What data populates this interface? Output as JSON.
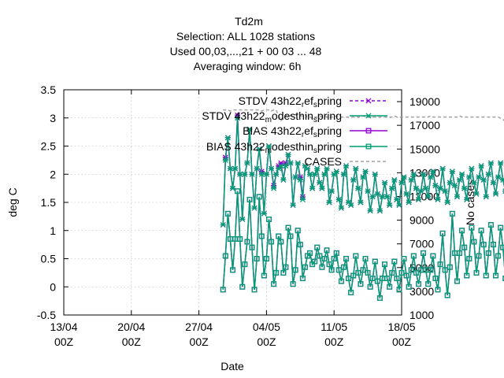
{
  "chart_data": {
    "type": "line",
    "title_lines": [
      "Td2m",
      "Selection: ALL   1028 stations",
      "Used  00,03,...,21  + 00 03 ... 48",
      "Averaging window:  6h"
    ],
    "xlabel": "Date",
    "ylabel": "deg C",
    "y2label": "No cases",
    "x_ticks": [
      "13/04 00Z",
      "20/04 00Z",
      "27/04 00Z",
      "04/05 00Z",
      "11/05 00Z",
      "18/05 00Z"
    ],
    "xlim": [
      "13/04 00Z",
      "18/05 00Z"
    ],
    "ylim": [
      -0.5,
      3.5
    ],
    "y_ticks": [
      "-0.5",
      "0",
      "0.5",
      "1",
      "1.5",
      "2",
      "2.5",
      "3",
      "3.5"
    ],
    "y2lim": [
      1000,
      20000
    ],
    "y2_ticks": [
      "1000",
      "3000",
      "5000",
      "7000",
      "9000",
      "11000",
      "13000",
      "15000",
      "17000",
      "19000"
    ],
    "grid": true,
    "legend_position": "top-right",
    "legend": [
      {
        "parts": [
          [
            "STDV 43h22",
            ""
          ],
          [
            "r",
            "sub"
          ],
          [
            "ef",
            ""
          ],
          [
            "s",
            "sub"
          ],
          [
            "pring",
            ""
          ]
        ],
        "color": "#9400d3",
        "marker": "x",
        "dash": true
      },
      {
        "parts": [
          [
            "STDV 43h22",
            ""
          ],
          [
            "m",
            "sub"
          ],
          [
            "odesthin",
            ""
          ],
          [
            "s",
            "sub"
          ],
          [
            "pring",
            ""
          ]
        ],
        "color": "#009e73",
        "marker": "x",
        "dash": false
      },
      {
        "parts": [
          [
            "BIAS 43h22",
            ""
          ],
          [
            "r",
            "sub"
          ],
          [
            "ef",
            ""
          ],
          [
            "s",
            "sub"
          ],
          [
            "pring",
            ""
          ]
        ],
        "color": "#9400d3",
        "marker": "square",
        "dash": false
      },
      {
        "parts": [
          [
            "BIAS 43h22",
            ""
          ],
          [
            "m",
            "sub"
          ],
          [
            "odesthin",
            ""
          ],
          [
            "s",
            "sub"
          ],
          [
            "pring",
            ""
          ]
        ],
        "color": "#009e73",
        "marker": "square",
        "dash": false
      },
      {
        "parts": [
          [
            "CASES",
            ""
          ]
        ],
        "color": "#a0a0a0",
        "marker": "none",
        "dash": true
      }
    ],
    "x_start_day": 16.5,
    "step_hours": 6,
    "series": [
      {
        "name": "STDV 43h22 ref spring",
        "axis": "y1",
        "color": "#9400d3",
        "marker": "x",
        "values": [
          1.1,
          2.3,
          2.65,
          2.1,
          1.75,
          2.1,
          3.05,
          2.0,
          1.2,
          2.0,
          2.2,
          2.8,
          2.0,
          1.4,
          2.1,
          2.45,
          2.05,
          1.3,
          2.0,
          2.5,
          2.1,
          1.8,
          2.0,
          2.15,
          2.2,
          1.9,
          2.2,
          2.35,
          2.2,
          1.45,
          1.95,
          2.2,
          1.95,
          1.6,
          2.15,
          2.1,
          2.0,
          1.75,
          2.0,
          2.1,
          1.85,
          1.75,
          2.0,
          2.1,
          1.5,
          1.7,
          2.0,
          2.05,
          1.55,
          1.4,
          2.0,
          2.15,
          1.5,
          1.45,
          1.9,
          2.1,
          1.75,
          1.5,
          1.95,
          2.05,
          1.7,
          1.35,
          1.6,
          2.0,
          1.65,
          1.35,
          1.6,
          1.85,
          1.6,
          1.45,
          1.75,
          1.9,
          1.55,
          1.45,
          1.85,
          1.95,
          1.65,
          1.5,
          1.9,
          2.0,
          1.75,
          1.55,
          1.7,
          2.0,
          1.75,
          1.6,
          1.95,
          2.05,
          1.8,
          1.55,
          1.75,
          2.1,
          1.7,
          1.5,
          1.85,
          2.05,
          1.8,
          1.6,
          1.9,
          2.0,
          1.75,
          1.55,
          1.95,
          2.1,
          1.85,
          1.65,
          1.95,
          2.15,
          1.9,
          1.6,
          2.0,
          2.2,
          1.85,
          1.65,
          1.95,
          2.2,
          1.9,
          1.7,
          1.95,
          2.2,
          1.8,
          1.75,
          2.05,
          2.25,
          1.9,
          1.75,
          2.0,
          2.35,
          1.95,
          1.7,
          2.05,
          2.4,
          1.95,
          1.7,
          2.1,
          2.45,
          1.8,
          1.75,
          2.1,
          2.55,
          1.85,
          1.7,
          2.0,
          2.5,
          1.75
        ],
        "note": ""
      },
      {
        "name": "STDV 43h22 modesthin spring",
        "axis": "y1",
        "color": "#009e73",
        "marker": "x",
        "values": [
          1.1,
          2.25,
          2.65,
          2.1,
          1.75,
          2.1,
          3.0,
          2.0,
          1.2,
          2.0,
          2.2,
          2.8,
          2.0,
          1.4,
          2.1,
          2.45,
          2.0,
          1.3,
          2.0,
          2.5,
          2.1,
          1.75,
          2.0,
          2.1,
          2.15,
          1.9,
          2.15,
          2.35,
          2.2,
          1.45,
          1.95,
          2.2,
          1.9,
          1.55,
          2.15,
          2.1,
          2.0,
          1.75,
          2.0,
          2.1,
          1.85,
          1.75,
          2.0,
          2.1,
          1.5,
          1.7,
          2.0,
          2.05,
          1.55,
          1.4,
          2.0,
          2.15,
          1.5,
          1.45,
          1.9,
          2.1,
          1.75,
          1.5,
          1.95,
          2.05,
          1.7,
          1.35,
          1.6,
          2.0,
          1.65,
          1.35,
          1.6,
          1.85,
          1.6,
          1.45,
          1.75,
          1.9,
          1.55,
          1.45,
          1.85,
          1.95,
          1.65,
          1.5,
          1.9,
          2.0,
          1.75,
          1.55,
          1.7,
          2.0,
          1.75,
          1.6,
          1.95,
          2.05,
          1.8,
          1.55,
          1.75,
          2.1,
          1.7,
          1.5,
          1.85,
          2.05,
          1.8,
          1.6,
          1.9,
          2.0,
          1.75,
          1.55,
          1.95,
          2.1,
          1.85,
          1.65,
          1.95,
          2.15,
          1.9,
          1.6,
          2.0,
          2.2,
          1.85,
          1.65,
          1.95,
          2.2,
          1.9,
          1.7,
          1.95,
          2.2,
          1.8,
          1.75,
          2.05,
          2.25,
          1.9,
          1.75,
          2.0,
          2.35,
          1.95,
          1.7,
          2.05,
          2.4,
          1.95,
          1.7,
          2.1,
          2.45,
          1.8,
          1.75,
          2.1,
          2.55,
          1.85,
          1.7,
          2.0,
          2.5,
          1.75
        ],
        "note": ""
      },
      {
        "name": "BIAS 43h22 ref spring",
        "axis": "y1",
        "color": "#9400d3",
        "marker": "square",
        "values": [
          -0.05,
          0.55,
          1.3,
          0.85,
          0.3,
          0.85,
          1.7,
          0.85,
          0.0,
          0.4,
          0.8,
          1.55,
          0.7,
          -0.05,
          0.5,
          1.6,
          0.9,
          0.2,
          0.5,
          1.2,
          0.8,
          0.05,
          0.25,
          0.9,
          0.8,
          0.25,
          0.35,
          1.05,
          0.9,
          0.05,
          0.3,
          1.0,
          0.75,
          0.15,
          0.35,
          0.55,
          0.6,
          0.4,
          0.45,
          0.7,
          0.55,
          0.35,
          0.5,
          0.65,
          0.4,
          0.3,
          0.5,
          0.6,
          0.3,
          0.1,
          0.35,
          0.5,
          0.15,
          -0.1,
          0.2,
          0.55,
          0.25,
          0.05,
          0.3,
          0.5,
          0.25,
          0.0,
          0.15,
          0.45,
          0.1,
          -0.2,
          0.15,
          0.4,
          0.15,
          0.0,
          0.25,
          0.45,
          0.15,
          -0.05,
          0.25,
          0.5,
          0.2,
          0.0,
          0.3,
          0.55,
          0.25,
          0.05,
          0.3,
          0.6,
          0.3,
          0.05,
          0.3,
          0.55,
          0.15,
          -0.05,
          0.4,
          0.95,
          0.3,
          -0.15,
          0.35,
          1.3,
          0.6,
          0.1,
          0.6,
          1.0,
          0.7,
          0.2,
          0.5,
          1.05,
          0.8,
          0.25,
          0.55,
          1.0,
          0.75,
          0.2,
          0.6,
          1.1,
          0.75,
          0.2,
          0.55,
          1.05,
          0.7,
          0.15,
          0.5,
          1.25,
          0.8,
          0.2,
          0.6,
          1.3,
          0.85,
          0.25,
          0.7,
          1.4,
          0.9,
          0.3,
          0.65,
          1.5,
          0.9,
          0.25,
          0.7,
          1.6,
          0.9,
          0.2,
          0.55,
          1.45,
          0.75,
          0.15,
          0.6,
          1.3,
          0.7
        ],
        "note": ""
      },
      {
        "name": "BIAS 43h22 modesthin spring",
        "axis": "y1",
        "color": "#009e73",
        "marker": "square",
        "values": [
          -0.05,
          0.55,
          1.3,
          0.85,
          0.3,
          0.85,
          1.7,
          0.85,
          0.0,
          0.4,
          0.8,
          1.55,
          0.7,
          -0.05,
          0.5,
          1.6,
          0.9,
          0.2,
          0.5,
          1.2,
          0.8,
          0.05,
          0.25,
          0.9,
          0.8,
          0.25,
          0.35,
          1.05,
          0.9,
          0.05,
          0.3,
          1.0,
          0.75,
          0.15,
          0.35,
          0.55,
          0.6,
          0.4,
          0.45,
          0.7,
          0.55,
          0.35,
          0.5,
          0.65,
          0.4,
          0.3,
          0.5,
          0.6,
          0.3,
          0.1,
          0.35,
          0.5,
          0.15,
          -0.1,
          0.2,
          0.55,
          0.25,
          0.05,
          0.3,
          0.5,
          0.25,
          0.0,
          0.15,
          0.45,
          0.1,
          -0.2,
          0.15,
          0.4,
          0.15,
          0.0,
          0.25,
          0.45,
          0.15,
          -0.05,
          0.25,
          0.5,
          0.2,
          0.0,
          0.3,
          0.55,
          0.25,
          0.05,
          0.3,
          0.6,
          0.3,
          0.05,
          0.3,
          0.55,
          0.15,
          -0.05,
          0.4,
          0.95,
          0.3,
          -0.15,
          0.35,
          1.3,
          0.6,
          0.1,
          0.6,
          1.0,
          0.7,
          0.2,
          0.5,
          1.05,
          0.8,
          0.25,
          0.55,
          1.0,
          0.75,
          0.2,
          0.6,
          1.1,
          0.75,
          0.2,
          0.55,
          1.05,
          0.7,
          0.15,
          0.5,
          1.25,
          0.8,
          0.2,
          0.6,
          1.3,
          0.85,
          0.25,
          0.7,
          1.4,
          0.9,
          0.3,
          0.65,
          1.5,
          0.9,
          0.25,
          0.7,
          1.6,
          0.9,
          0.2,
          0.55,
          1.45,
          0.75,
          0.15,
          0.6,
          1.3,
          0.7
        ],
        "note": ""
      },
      {
        "name": "CASES",
        "axis": "y2",
        "color": "#a0a0a0",
        "marker": "none",
        "values": [
          18300,
          18300,
          18300,
          18200,
          18300,
          18300,
          18300,
          18300,
          18300,
          18300,
          18300,
          18300,
          18300,
          18300,
          18300,
          18300,
          18200,
          18300,
          18300,
          18300,
          18200,
          18300,
          18300,
          17800,
          17400,
          17600,
          17800,
          17900,
          17800,
          17900,
          17900,
          17800,
          17800,
          17800,
          17900,
          17700,
          17700,
          17600,
          17700,
          17700,
          17800,
          17700,
          17800,
          17700,
          17700,
          17700,
          17700,
          17800,
          17700,
          17700,
          17700,
          17700,
          17700,
          17700,
          17700,
          17700,
          17700,
          17700,
          17800,
          17700,
          17700,
          17700,
          17700,
          17700,
          17700,
          17700,
          17700,
          17700,
          17700,
          17700,
          17700,
          17800,
          17700,
          17700,
          17700,
          17700,
          17700,
          17700,
          17700,
          17700,
          17700,
          17700,
          17700,
          17700,
          17700,
          17700,
          17800,
          17700,
          17700,
          17700,
          17700,
          17700,
          17700,
          17700,
          17700,
          17700,
          17700,
          17700,
          17800,
          17700,
          17700,
          17700,
          17700,
          17700,
          17700,
          17700,
          17700,
          17700,
          17700,
          17700,
          17700,
          17700,
          17700,
          17700,
          17700,
          17600,
          17500,
          17300,
          17000,
          16500,
          16100,
          15900,
          15600,
          15400,
          15300,
          15300,
          15200,
          15200,
          15200,
          15100,
          15100,
          15200,
          15000,
          14700,
          14400,
          14200,
          14000,
          13900,
          13900,
          13900,
          13900,
          13900,
          13800,
          13800
        ],
        "note": ""
      }
    ]
  }
}
